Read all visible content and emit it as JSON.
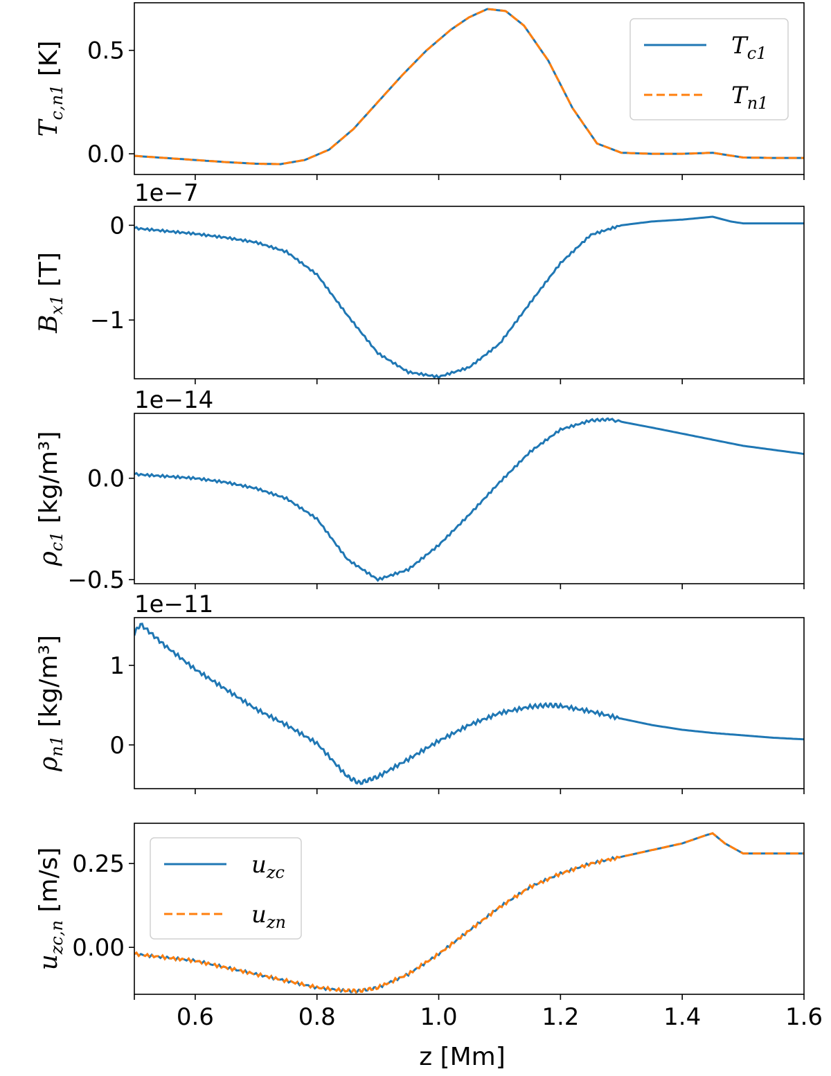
{
  "chart_data": [
    {
      "type": "line",
      "ylabel_main": "T",
      "ylabel_sub": "c,n1",
      "ylabel_unit": " [K]",
      "ylim": [
        -0.1,
        0.73
      ],
      "yticks": [
        {
          "v": 0.0,
          "label": "0.0"
        },
        {
          "v": 0.5,
          "label": "0.5"
        }
      ],
      "legend_position": "top-right",
      "series": [
        {
          "name_main": "T",
          "name_sub": "c1",
          "color": "#1f77b4",
          "dash": "",
          "x": [
            0.5,
            0.55,
            0.6,
            0.65,
            0.7,
            0.74,
            0.78,
            0.82,
            0.86,
            0.9,
            0.94,
            0.98,
            1.02,
            1.05,
            1.08,
            1.11,
            1.14,
            1.18,
            1.22,
            1.26,
            1.3,
            1.35,
            1.4,
            1.45,
            1.5,
            1.55,
            1.6
          ],
          "y": [
            -0.01,
            -0.02,
            -0.03,
            -0.04,
            -0.048,
            -0.05,
            -0.03,
            0.02,
            0.12,
            0.25,
            0.38,
            0.5,
            0.6,
            0.66,
            0.7,
            0.69,
            0.62,
            0.45,
            0.22,
            0.05,
            0.005,
            0.0,
            0.0,
            0.005,
            -0.018,
            -0.02,
            -0.02
          ]
        },
        {
          "name_main": "T",
          "name_sub": "n1",
          "color": "#ff7f0e",
          "dash": "12,6",
          "x": [
            0.5,
            0.55,
            0.6,
            0.65,
            0.7,
            0.74,
            0.78,
            0.82,
            0.86,
            0.9,
            0.94,
            0.98,
            1.02,
            1.05,
            1.08,
            1.11,
            1.14,
            1.18,
            1.22,
            1.26,
            1.3,
            1.35,
            1.4,
            1.45,
            1.5,
            1.55,
            1.6
          ],
          "y": [
            -0.01,
            -0.02,
            -0.03,
            -0.04,
            -0.048,
            -0.05,
            -0.03,
            0.02,
            0.12,
            0.25,
            0.38,
            0.5,
            0.6,
            0.66,
            0.7,
            0.69,
            0.62,
            0.45,
            0.22,
            0.05,
            0.005,
            0.0,
            0.0,
            0.005,
            -0.018,
            -0.02,
            -0.02
          ]
        }
      ]
    },
    {
      "type": "line",
      "offset": "1e−7",
      "ylabel_main": "B",
      "ylabel_sub": "x1",
      "ylabel_unit": " [T]",
      "ylim": [
        -1.62,
        0.2
      ],
      "yticks": [
        {
          "v": 0,
          "label": "0"
        },
        {
          "v": -1,
          "label": "−1"
        }
      ],
      "series": [
        {
          "name_main": "B",
          "name_sub": "x1",
          "color": "#1f77b4",
          "dash": "",
          "ripple": 0.012,
          "x": [
            0.5,
            0.55,
            0.6,
            0.65,
            0.7,
            0.75,
            0.8,
            0.85,
            0.9,
            0.95,
            1.0,
            1.05,
            1.1,
            1.15,
            1.2,
            1.25,
            1.3,
            1.35,
            1.4,
            1.45,
            1.48,
            1.5,
            1.55,
            1.6
          ],
          "y": [
            -0.03,
            -0.06,
            -0.09,
            -0.13,
            -0.18,
            -0.28,
            -0.52,
            -0.95,
            -1.35,
            -1.55,
            -1.6,
            -1.5,
            -1.25,
            -0.82,
            -0.4,
            -0.1,
            0.0,
            0.04,
            0.06,
            0.09,
            0.04,
            0.02,
            0.02,
            0.02
          ]
        }
      ]
    },
    {
      "type": "line",
      "offset": "1e−14",
      "ylabel_main": "ρ",
      "ylabel_sub": "c1",
      "ylabel_unit": " [kg/m³]",
      "ylim": [
        -0.52,
        0.32
      ],
      "yticks": [
        {
          "v": 0.0,
          "label": "0.0"
        },
        {
          "v": -0.5,
          "label": "−0.5"
        }
      ],
      "series": [
        {
          "name_main": "ρ",
          "name_sub": "c1",
          "color": "#1f77b4",
          "dash": "",
          "ripple": 0.006,
          "x": [
            0.5,
            0.55,
            0.6,
            0.65,
            0.7,
            0.75,
            0.8,
            0.85,
            0.9,
            0.95,
            1.0,
            1.05,
            1.1,
            1.15,
            1.2,
            1.25,
            1.28,
            1.35,
            1.4,
            1.45,
            1.5,
            1.55,
            1.6
          ],
          "y": [
            0.02,
            0.01,
            0.0,
            -0.02,
            -0.05,
            -0.1,
            -0.2,
            -0.4,
            -0.5,
            -0.45,
            -0.33,
            -0.18,
            -0.02,
            0.13,
            0.24,
            0.285,
            0.29,
            0.25,
            0.22,
            0.19,
            0.16,
            0.14,
            0.12
          ]
        }
      ]
    },
    {
      "type": "line",
      "offset": "1e−11",
      "ylabel_main": "ρ",
      "ylabel_sub": "n1",
      "ylabel_unit": " [kg/m³]",
      "ylim": [
        -0.55,
        1.6
      ],
      "yticks": [
        {
          "v": 1,
          "label": "1"
        },
        {
          "v": 0,
          "label": "0"
        }
      ],
      "series": [
        {
          "name_main": "ρ",
          "name_sub": "n1",
          "color": "#1f77b4",
          "dash": "",
          "ripple": 0.025,
          "x": [
            0.5,
            0.51,
            0.55,
            0.6,
            0.65,
            0.7,
            0.75,
            0.8,
            0.85,
            0.87,
            0.9,
            0.95,
            1.0,
            1.05,
            1.1,
            1.15,
            1.18,
            1.2,
            1.25,
            1.3,
            1.35,
            1.4,
            1.45,
            1.5,
            1.55,
            1.6
          ],
          "y": [
            1.4,
            1.52,
            1.25,
            0.95,
            0.7,
            0.45,
            0.25,
            0.02,
            -0.4,
            -0.48,
            -0.4,
            -0.18,
            0.05,
            0.25,
            0.4,
            0.48,
            0.5,
            0.49,
            0.42,
            0.33,
            0.25,
            0.19,
            0.15,
            0.12,
            0.09,
            0.07
          ]
        }
      ]
    },
    {
      "type": "line",
      "ylabel_main": "u",
      "ylabel_sub": "zc,n",
      "ylabel_unit": " [m/s]",
      "xlabel": "z [Mm]",
      "xlim": [
        0.5,
        1.6
      ],
      "xticks": [
        {
          "v": 0.6,
          "label": "0.6"
        },
        {
          "v": 0.8,
          "label": "0.8"
        },
        {
          "v": 1.0,
          "label": "1.0"
        },
        {
          "v": 1.2,
          "label": "1.2"
        },
        {
          "v": 1.4,
          "label": "1.4"
        },
        {
          "v": 1.6,
          "label": "1.6"
        }
      ],
      "ylim": [
        -0.14,
        0.37
      ],
      "yticks": [
        {
          "v": 0.25,
          "label": "0.25"
        },
        {
          "v": 0.0,
          "label": "0.00"
        }
      ],
      "legend_position": "top-left",
      "series": [
        {
          "name_main": "u",
          "name_sub": "zc",
          "color": "#1f77b4",
          "dash": "",
          "ripple": 0.004,
          "x": [
            0.5,
            0.55,
            0.6,
            0.65,
            0.7,
            0.75,
            0.8,
            0.85,
            0.87,
            0.9,
            0.95,
            1.0,
            1.05,
            1.1,
            1.15,
            1.2,
            1.25,
            1.3,
            1.35,
            1.4,
            1.44,
            1.45,
            1.47,
            1.5,
            1.55,
            1.6
          ],
          "y": [
            -0.02,
            -0.03,
            -0.04,
            -0.06,
            -0.08,
            -0.1,
            -0.12,
            -0.13,
            -0.13,
            -0.12,
            -0.08,
            -0.02,
            0.05,
            0.12,
            0.18,
            0.22,
            0.25,
            0.27,
            0.29,
            0.31,
            0.335,
            0.34,
            0.31,
            0.28,
            0.28,
            0.28
          ]
        },
        {
          "name_main": "u",
          "name_sub": "zn",
          "color": "#ff7f0e",
          "dash": "12,6",
          "ripple": 0.005,
          "x": [
            0.5,
            0.55,
            0.6,
            0.65,
            0.7,
            0.75,
            0.8,
            0.85,
            0.87,
            0.9,
            0.95,
            1.0,
            1.05,
            1.1,
            1.15,
            1.2,
            1.25,
            1.3,
            1.35,
            1.4,
            1.44,
            1.45,
            1.47,
            1.5,
            1.55,
            1.6
          ],
          "y": [
            -0.02,
            -0.03,
            -0.04,
            -0.06,
            -0.08,
            -0.1,
            -0.12,
            -0.13,
            -0.13,
            -0.12,
            -0.08,
            -0.02,
            0.05,
            0.12,
            0.18,
            0.22,
            0.25,
            0.27,
            0.29,
            0.31,
            0.335,
            0.34,
            0.31,
            0.28,
            0.28,
            0.28
          ]
        }
      ]
    }
  ]
}
